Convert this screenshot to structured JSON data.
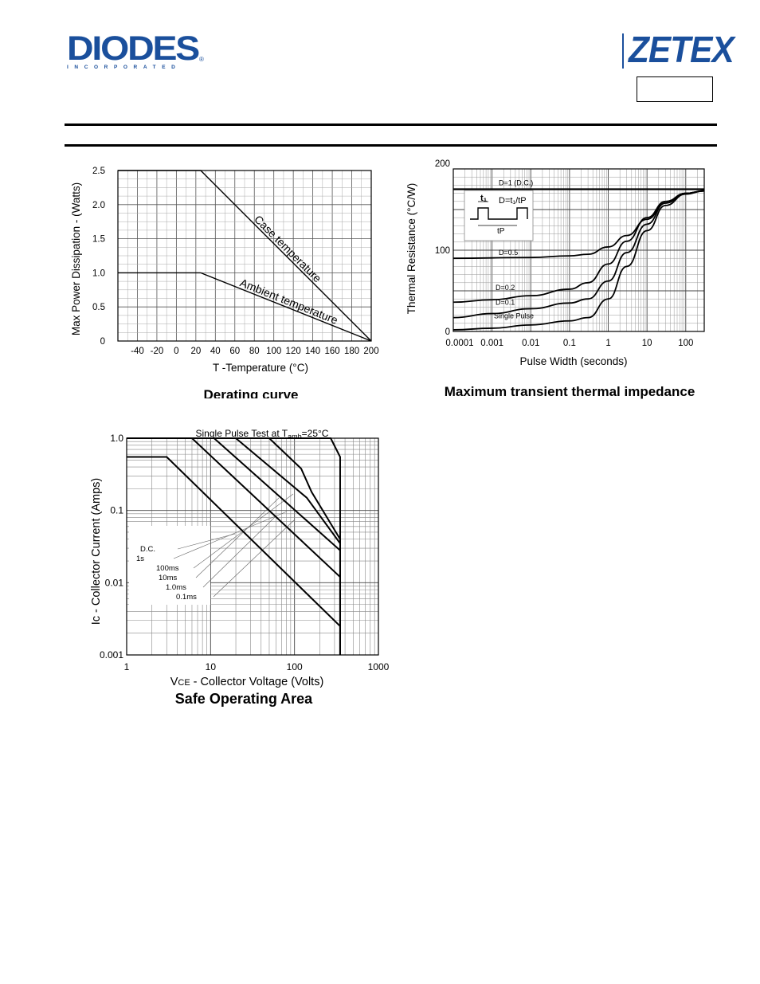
{
  "header": {
    "left_logo": {
      "name": "DIODES",
      "tagline": "INCORPORATED",
      "mark": "®"
    },
    "right_logo": {
      "name": "ZETEX"
    },
    "brand_color": "#1a4f9c"
  },
  "chart_data": [
    {
      "type": "line",
      "title": "Derating curve",
      "xlabel": "T -Temperature (°C)",
      "ylabel": "Max Power Dissipation - (Watts)",
      "xlim": [
        -60,
        200
      ],
      "ylim": [
        0,
        2.5
      ],
      "x_ticks": [
        "-40",
        "-20",
        "0",
        "20",
        "40",
        "60",
        "80",
        "100",
        "120",
        "140",
        "160",
        "180",
        "200"
      ],
      "y_ticks": [
        "0",
        "0.5",
        "1.0",
        "1.5",
        "2.0",
        "2.5"
      ],
      "grid": true,
      "series": [
        {
          "name": "Case temperature",
          "x": [
            -60,
            25,
            200
          ],
          "y": [
            2.5,
            2.5,
            0
          ]
        },
        {
          "name": "Ambient temperature",
          "x": [
            -60,
            25,
            200
          ],
          "y": [
            1.0,
            1.0,
            0
          ]
        }
      ]
    },
    {
      "type": "line",
      "title": "Maximum transient thermal impedance",
      "xlabel": "Pulse Width (seconds)",
      "ylabel": "Thermal Resistance (°C/W)",
      "xscale": "log",
      "xlim": [
        0.0001,
        300
      ],
      "ylim": [
        0,
        200
      ],
      "x_ticks": [
        "0.0001",
        "0.001",
        "0.01",
        "0.1",
        "1",
        "10",
        "100"
      ],
      "y_ticks": [
        "0",
        "100",
        "200"
      ],
      "grid": true,
      "inset": {
        "t1": "t₁",
        "formula": "D=t₁/tP",
        "tp": "tP"
      },
      "series": [
        {
          "name": "D=1 (D.C.)",
          "x": [
            0.0001,
            300
          ],
          "y": [
            175,
            175
          ]
        },
        {
          "name": "D=0.5",
          "x": [
            0.0001,
            0.01,
            0.1,
            0.3,
            1,
            3,
            10,
            30,
            100,
            300
          ],
          "y": [
            90,
            91,
            93,
            95,
            104,
            118,
            138,
            158,
            170,
            173
          ]
        },
        {
          "name": "D=0.2",
          "x": [
            0.0001,
            0.001,
            0.01,
            0.1,
            0.3,
            1,
            3,
            10,
            30,
            100,
            300
          ],
          "y": [
            36,
            39,
            44,
            52,
            60,
            83,
            111,
            140,
            160,
            170,
            173
          ]
        },
        {
          "name": "D=0.1",
          "x": [
            0.0001,
            0.001,
            0.01,
            0.1,
            0.3,
            1,
            3,
            10,
            30,
            100,
            300
          ],
          "y": [
            17,
            22,
            28,
            35,
            40,
            62,
            97,
            132,
            158,
            170,
            173
          ]
        },
        {
          "name": "Single Pulse",
          "x": [
            0.0001,
            0.001,
            0.01,
            0.1,
            0.3,
            1,
            3,
            10,
            30,
            100,
            300
          ],
          "y": [
            2,
            4,
            8,
            13,
            17,
            40,
            80,
            124,
            155,
            169,
            173
          ]
        }
      ]
    },
    {
      "type": "line",
      "title": "Safe Operating Area",
      "subtitle": "Single Pulse Test at T",
      "subtitle_sub": "amb",
      "subtitle_tail": "=25°C",
      "xlabel_pre": "V",
      "xlabel_sub": "CE",
      "xlabel_tail": " - Collector Voltage (Volts)",
      "ylabel": "Ic - Collector Current (Amps)",
      "xscale": "log",
      "yscale": "log",
      "xlim": [
        1,
        1000
      ],
      "ylim": [
        0.001,
        1.0
      ],
      "x_ticks": [
        "1",
        "10",
        "100",
        "1000"
      ],
      "y_ticks": [
        "0.001",
        "0.01",
        "0.1",
        "1.0"
      ],
      "grid": true,
      "series": [
        {
          "name": "D.C.",
          "x": [
            1,
            3,
            350,
            350
          ],
          "y": [
            0.55,
            0.55,
            0.0025,
            0.001
          ]
        },
        {
          "name": "1s",
          "x": [
            1,
            6,
            350,
            350
          ],
          "y": [
            1.0,
            1.0,
            0.012,
            0.001
          ]
        },
        {
          "name": "100ms",
          "x": [
            1,
            11,
            350,
            350
          ],
          "y": [
            1.0,
            1.0,
            0.028,
            0.001
          ]
        },
        {
          "name": "10ms",
          "x": [
            1,
            20,
            140,
            350,
            350
          ],
          "y": [
            1.0,
            1.0,
            0.15,
            0.035,
            0.001
          ]
        },
        {
          "name": "1.0ms",
          "x": [
            1,
            50,
            120,
            160,
            350,
            350
          ],
          "y": [
            1.0,
            1.0,
            0.38,
            0.18,
            0.04,
            0.001
          ]
        },
        {
          "name": "0.1ms",
          "x": [
            1,
            270,
            350,
            350
          ],
          "y": [
            1.0,
            1.0,
            0.55,
            0.001
          ]
        }
      ]
    }
  ]
}
